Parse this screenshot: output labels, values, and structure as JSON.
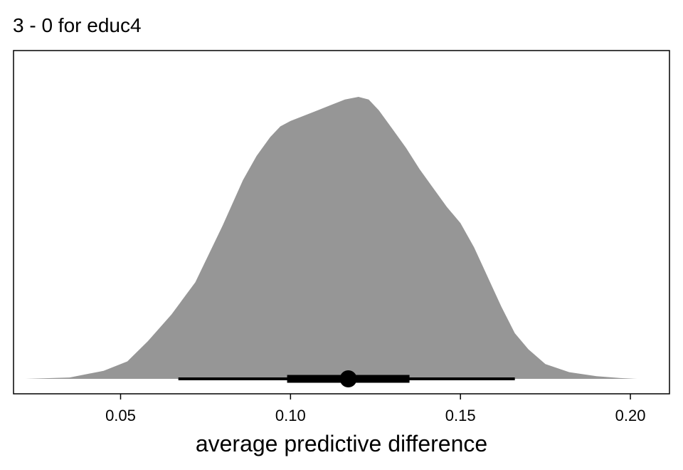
{
  "chart_data": {
    "type": "area",
    "title": "3 - 0 for educ4",
    "xlabel": "average predictive difference",
    "ylabel": "",
    "xlim": [
      0.0185,
      0.2115
    ],
    "ylim": [
      0,
      1.08
    ],
    "xticks": [
      0.05,
      0.1,
      0.15,
      0.2
    ],
    "xtick_labels": [
      "0.05",
      "0.10",
      "0.15",
      "0.20"
    ],
    "grid": false,
    "legend": "none",
    "density": {
      "x": [
        0.022,
        0.035,
        0.045,
        0.052,
        0.058,
        0.065,
        0.072,
        0.08,
        0.086,
        0.09,
        0.094,
        0.097,
        0.1,
        0.104,
        0.108,
        0.112,
        0.116,
        0.12,
        0.123,
        0.126,
        0.13,
        0.134,
        0.138,
        0.142,
        0.146,
        0.15,
        0.154,
        0.158,
        0.162,
        0.166,
        0.17,
        0.175,
        0.182,
        0.19,
        0.197,
        0.202
      ],
      "y": [
        0.0,
        0.005,
        0.03,
        0.065,
        0.14,
        0.24,
        0.36,
        0.57,
        0.74,
        0.83,
        0.9,
        0.94,
        0.96,
        0.98,
        1.0,
        1.02,
        1.04,
        1.05,
        1.04,
        1.0,
        0.93,
        0.86,
        0.78,
        0.71,
        0.64,
        0.58,
        0.49,
        0.38,
        0.27,
        0.17,
        0.11,
        0.055,
        0.025,
        0.01,
        0.003,
        0.0
      ]
    },
    "point_estimate": 0.117,
    "intervals": [
      {
        "lower": 0.067,
        "upper": 0.166,
        "level": "outer"
      },
      {
        "lower": 0.099,
        "upper": 0.135,
        "level": "inner"
      }
    ],
    "colors": {
      "density": "#969696",
      "interval": "#000000",
      "frame": "#000000"
    }
  }
}
